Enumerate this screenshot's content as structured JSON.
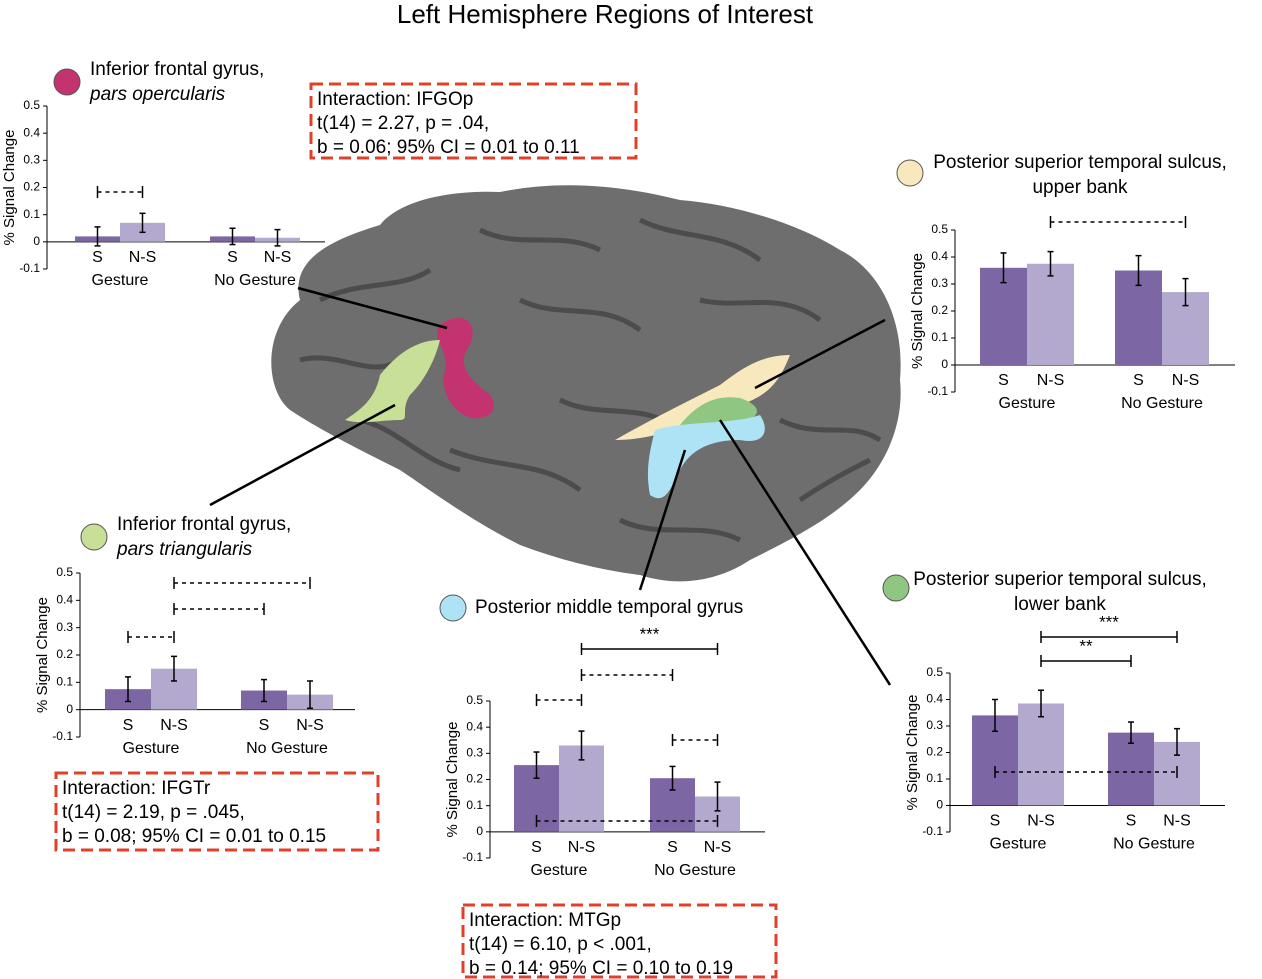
{
  "title": "Left Hemisphere Regions of Interest",
  "interactions": [
    [
      "Interaction: IFGOp",
      "t(14) = 2.27, p = .04,",
      "b = 0.06; 95% CI = 0.01 to 0.11"
    ],
    [
      "Interaction: IFGTr",
      "t(14) = 2.19, p = .045,",
      "b = 0.08; 95% CI = 0.01 to 0.15"
    ],
    [
      "Interaction: MTGp",
      "t(14) = 6.10, p < .001,",
      "b = 0.14; 95% CI = 0.10 to 0.19"
    ]
  ],
  "chart_data": [
    {
      "type": "bar",
      "title": [
        "Inferior frontal gyrus,",
        "pars opercularis"
      ],
      "marker_color": "#c2336f",
      "ylabel": "% Signal Change",
      "categories": [
        "Gesture",
        "No Gesture"
      ],
      "series": [
        {
          "name": "S",
          "color": "#7c67a4",
          "values": [
            0.02,
            0.02
          ],
          "errors": [
            0.035,
            0.03
          ]
        },
        {
          "name": "N-S",
          "color": "#b3a8cd",
          "values": [
            0.07,
            0.015
          ],
          "errors": [
            0.035,
            0.03
          ]
        }
      ],
      "ylim": [
        -0.1,
        0.5
      ],
      "yticks": [
        -0.1,
        0,
        0.1,
        0.2,
        0.3,
        0.4,
        0.5
      ]
    },
    {
      "type": "bar",
      "title": [
        "Posterior superior temporal sulcus,",
        "upper bank"
      ],
      "marker_color": "#f7e8bd",
      "ylabel": "% Signal Change",
      "categories": [
        "Gesture",
        "No Gesture"
      ],
      "series": [
        {
          "name": "S",
          "color": "#7c67a4",
          "values": [
            0.36,
            0.35
          ],
          "errors": [
            0.055,
            0.055
          ]
        },
        {
          "name": "N-S",
          "color": "#b3a8cd",
          "values": [
            0.375,
            0.27
          ],
          "errors": [
            0.045,
            0.05
          ]
        }
      ],
      "ylim": [
        -0.1,
        0.5
      ],
      "yticks": [
        -0.1,
        0,
        0.1,
        0.2,
        0.3,
        0.4,
        0.5
      ]
    },
    {
      "type": "bar",
      "title": [
        "Inferior frontal gyrus,",
        "pars triangularis"
      ],
      "marker_color": "#c8df97",
      "ylabel": "% Signal Change",
      "categories": [
        "Gesture",
        "No Gesture"
      ],
      "series": [
        {
          "name": "S",
          "color": "#7c67a4",
          "values": [
            0.075,
            0.07
          ],
          "errors": [
            0.045,
            0.04
          ]
        },
        {
          "name": "N-S",
          "color": "#b3a8cd",
          "values": [
            0.15,
            0.055
          ],
          "errors": [
            0.045,
            0.05
          ]
        }
      ],
      "ylim": [
        -0.1,
        0.5
      ],
      "yticks": [
        -0.1,
        0,
        0.1,
        0.2,
        0.3,
        0.4,
        0.5
      ]
    },
    {
      "type": "bar",
      "title": [
        "Posterior middle temporal gyrus"
      ],
      "marker_color": "#aee3f5",
      "ylabel": "% Signal Change",
      "categories": [
        "Gesture",
        "No Gesture"
      ],
      "series": [
        {
          "name": "S",
          "color": "#7c67a4",
          "values": [
            0.255,
            0.205
          ],
          "errors": [
            0.05,
            0.045
          ]
        },
        {
          "name": "N-S",
          "color": "#b3a8cd",
          "values": [
            0.33,
            0.135
          ],
          "errors": [
            0.055,
            0.055
          ]
        }
      ],
      "ylim": [
        -0.1,
        0.5
      ],
      "yticks": [
        -0.1,
        0,
        0.1,
        0.2,
        0.3,
        0.4,
        0.5
      ],
      "annotations": [
        "***"
      ]
    },
    {
      "type": "bar",
      "title": [
        "Posterior superior temporal sulcus,",
        "lower bank"
      ],
      "marker_color": "#8fc681",
      "ylabel": "% Signal Change",
      "categories": [
        "Gesture",
        "No Gesture"
      ],
      "series": [
        {
          "name": "S",
          "color": "#7c67a4",
          "values": [
            0.34,
            0.275
          ],
          "errors": [
            0.06,
            0.04
          ]
        },
        {
          "name": "N-S",
          "color": "#b3a8cd",
          "values": [
            0.385,
            0.24
          ],
          "errors": [
            0.05,
            0.05
          ]
        }
      ],
      "ylim": [
        -0.1,
        0.5
      ],
      "yticks": [
        -0.1,
        0,
        0.1,
        0.2,
        0.3,
        0.4,
        0.5
      ],
      "annotations": [
        "***",
        "**"
      ]
    }
  ]
}
